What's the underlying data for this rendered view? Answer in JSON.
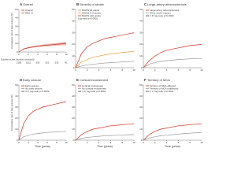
{
  "chart_data": [
    {
      "type": "line",
      "label": "A",
      "title": "Overall",
      "ylabel": "Cumulative risk of late seizure (%)",
      "x": [
        0,
        1,
        2,
        3,
        4,
        5,
        6,
        7,
        8,
        9,
        10
      ],
      "series": [
        {
          "name": "Overall",
          "color": "#c0392b",
          "values": [
            0,
            3.5,
            5,
            6,
            6.8,
            7.5,
            8,
            8.5,
            9,
            9.5,
            10
          ]
        }
      ],
      "ci_label": "95% CI",
      "ci_color": "#f2b8b0",
      "ci_lower": [
        0,
        2.8,
        4.2,
        5.1,
        5.8,
        6.3,
        6.7,
        7.1,
        7.4,
        7.7,
        7.9
      ],
      "ci_upper": [
        0,
        4.2,
        5.8,
        6.9,
        7.8,
        8.7,
        9.3,
        9.9,
        10.6,
        11.3,
        12.1
      ],
      "xlim": [
        0,
        10
      ],
      "xticks": [
        0,
        2,
        4,
        6,
        8,
        10
      ],
      "ylim": [
        0,
        50
      ],
      "yticks": [
        0,
        10,
        20,
        30,
        40,
        50
      ],
      "risk_label": "Number at risk (number censored)",
      "risk": [
        2185,
        1511,
        935,
        521,
        233,
        41
      ]
    },
    {
      "type": "line",
      "label": "B",
      "title": "Severity of stroke",
      "x": [
        0,
        1,
        2,
        3,
        4,
        5,
        6,
        7,
        8,
        9,
        10
      ],
      "series": [
        {
          "name": "NIHSS ≤4 points",
          "color": "#999999",
          "values": [
            0,
            1.5,
            2.5,
            3,
            3.5,
            4,
            4.3,
            4.6,
            5,
            5.2,
            5.5
          ]
        },
        {
          "name": "NIHSS 5–9 points",
          "color": "#e8a33d",
          "values": [
            0,
            5,
            7,
            9,
            10,
            11,
            12,
            12.5,
            13,
            13.5,
            14
          ]
        },
        {
          "name": "NIHSS ≥10 points",
          "color": "#d7301f",
          "values": [
            0,
            12,
            18,
            21,
            23,
            25,
            26,
            27,
            28,
            29,
            30
          ]
        }
      ],
      "annotation": "Log-rank p<0·0001",
      "xlim": [
        0,
        10
      ],
      "xticks": [
        0,
        2,
        4,
        6,
        8,
        10
      ],
      "ylim": [
        0,
        50
      ],
      "yticks": [
        0,
        10,
        20,
        30,
        40,
        50
      ]
    },
    {
      "type": "line",
      "label": "C",
      "title": "Large-artery atherosclerosis",
      "x": [
        0,
        1,
        2,
        3,
        4,
        5,
        6,
        7,
        8,
        9,
        10
      ],
      "series": [
        {
          "name": "Large-artery atherosclerosis",
          "color": "#d7301f",
          "values": [
            0,
            6,
            10,
            13,
            15,
            16,
            17,
            18,
            19,
            19.5,
            20
          ]
        },
        {
          "name": "Other stroke causes",
          "color": "#999999",
          "values": [
            0,
            3,
            4.5,
            5.5,
            6,
            6.5,
            7,
            7.3,
            7.6,
            7.8,
            8
          ]
        }
      ],
      "annotation": "HR 2·8; log-rank p=0·0004",
      "xlim": [
        0,
        10
      ],
      "xticks": [
        0,
        2,
        4,
        6,
        8,
        10
      ],
      "ylim": [
        0,
        50
      ],
      "yticks": [
        0,
        10,
        20,
        30,
        40,
        50
      ]
    },
    {
      "type": "line",
      "label": "D",
      "title": "Early seizure",
      "ylabel": "Cumulative risk of late seizure (%)",
      "xlabel": "Time (years)",
      "x": [
        0,
        1,
        2,
        3,
        4,
        5,
        6,
        7,
        8,
        9,
        10
      ],
      "series": [
        {
          "name": "Early seizure",
          "color": "#d7301f",
          "values": [
            0,
            15,
            22,
            26,
            28,
            30,
            31,
            32,
            33,
            34,
            35
          ]
        },
        {
          "name": "No early seizure",
          "color": "#999999",
          "values": [
            0,
            3,
            4.5,
            5.5,
            6,
            6.5,
            7,
            7.3,
            7.6,
            7.8,
            8
          ]
        }
      ],
      "annotation": "HR 3·5; log-rank p<0·0001",
      "xlim": [
        0,
        10
      ],
      "xticks": [
        0,
        2,
        4,
        6,
        8,
        10
      ],
      "ylim": [
        0,
        50
      ],
      "yticks": [
        0,
        10,
        20,
        30,
        40,
        50
      ]
    },
    {
      "type": "line",
      "label": "E",
      "title": "Cortical involvement",
      "xlabel": "Time (years)",
      "x": [
        0,
        1,
        2,
        3,
        4,
        5,
        6,
        7,
        8,
        9,
        10
      ],
      "series": [
        {
          "name": "Cortical involvement",
          "color": "#d7301f",
          "values": [
            0,
            5,
            8,
            10,
            11,
            12,
            13,
            13.5,
            14,
            14.5,
            15
          ]
        },
        {
          "name": "No cortical involvement",
          "color": "#999999",
          "values": [
            0,
            1.5,
            2.5,
            3,
            3.5,
            4,
            4.2,
            4.5,
            4.7,
            4.9,
            5
          ]
        }
      ],
      "annotation": "HR 3·0; log-rank p<0·0001",
      "xlim": [
        0,
        10
      ],
      "xticks": [
        0,
        2,
        4,
        6,
        8,
        10
      ],
      "ylim": [
        0,
        50
      ],
      "yticks": [
        0,
        10,
        20,
        30,
        40,
        50
      ]
    },
    {
      "type": "line",
      "label": "F",
      "title": "Territory of MCA",
      "xlabel": "Time (years)",
      "x": [
        0,
        1,
        2,
        3,
        4,
        5,
        6,
        7,
        8,
        9,
        10
      ],
      "series": [
        {
          "name": "Territory of MCA affected",
          "color": "#d7301f",
          "values": [
            0,
            5,
            8,
            10,
            11,
            12,
            13,
            13.5,
            14,
            14.5,
            15
          ]
        },
        {
          "name": "Territory of MCA unaffected",
          "color": "#999999",
          "values": [
            0,
            2,
            3,
            4,
            4.5,
            5,
            5.5,
            6,
            6.3,
            6.7,
            7
          ]
        }
      ],
      "annotation": "HR 2·2; log-rank p<0·0001",
      "xlim": [
        0,
        10
      ],
      "xticks": [
        0,
        2,
        4,
        6,
        8,
        10
      ],
      "ylim": [
        0,
        50
      ],
      "yticks": [
        0,
        10,
        20,
        30,
        40,
        50
      ]
    }
  ]
}
